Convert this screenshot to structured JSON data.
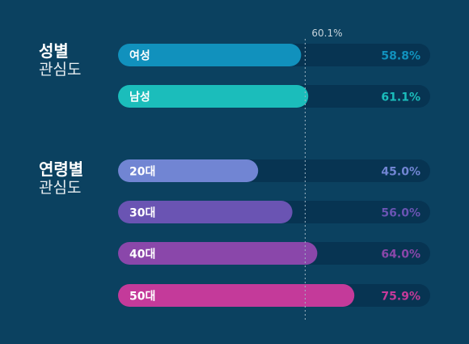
{
  "sections": {
    "gender": {
      "title_bold": "성별",
      "title_light": "관심도"
    },
    "age": {
      "title_bold": "연령별",
      "title_light": "관심도"
    }
  },
  "chart_data": {
    "type": "bar",
    "orientation": "horizontal",
    "xlim": [
      0,
      100
    ],
    "reference": {
      "value": 60.1,
      "label": "60.1%"
    },
    "groups": [
      {
        "name": "성별 관심도",
        "categories": [
          "여성",
          "남성"
        ],
        "values": [
          58.8,
          61.1
        ],
        "value_labels": [
          "58.8%",
          "61.1%"
        ],
        "colors": [
          "#1191bd",
          "#1bbdbb"
        ]
      },
      {
        "name": "연령별 관심도",
        "categories": [
          "20대",
          "30대",
          "40대",
          "50대"
        ],
        "values": [
          45.0,
          56.0,
          64.0,
          75.9
        ],
        "value_labels": [
          "45.0%",
          "56.0%",
          "64.0%",
          "75.9%"
        ],
        "colors": [
          "#7185d3",
          "#6a54b3",
          "#8a47aa",
          "#c43a9a"
        ]
      }
    ],
    "track_color": "#073452",
    "background": "#0b4160"
  }
}
